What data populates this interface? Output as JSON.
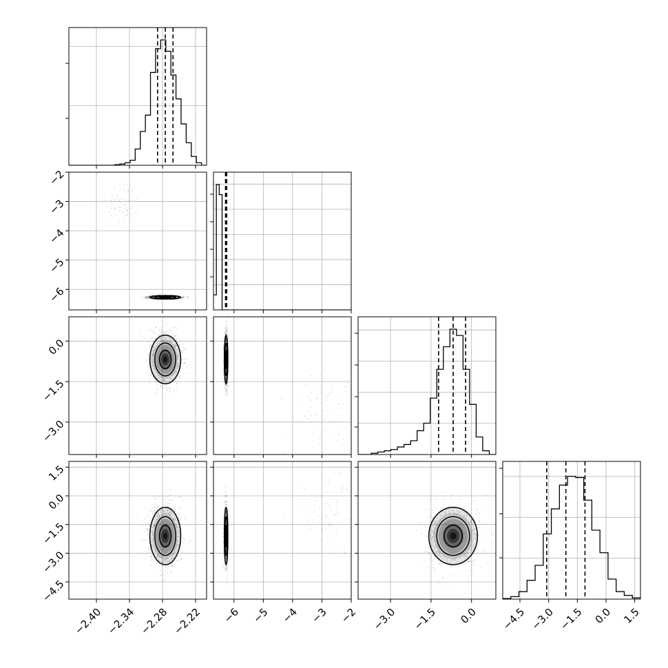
{
  "chart_data": {
    "type": "corner",
    "grid": true,
    "params": [
      {
        "range": [
          -2.45,
          -2.2
        ],
        "ticks": [
          -2.4,
          -2.34,
          -2.28,
          -2.22
        ],
        "tick_labels": [
          "−2.40",
          "−2.34",
          "−2.28",
          "−2.22"
        ],
        "quantiles": [
          -2.289,
          -2.275,
          -2.261
        ]
      },
      {
        "range": [
          -6.7,
          -2.0
        ],
        "ticks": [
          -6,
          -5,
          -4,
          -3,
          -2
        ],
        "tick_labels": [
          "−6",
          "−5",
          "−4",
          "−3",
          "−2"
        ],
        "quantiles": [
          -6.29,
          -6.27,
          -6.25
        ]
      },
      {
        "range": [
          -4.2,
          0.9
        ],
        "ticks": [
          -3.0,
          -1.5,
          0.0
        ],
        "tick_labels": [
          "−3.0",
          "−1.5",
          "0.0"
        ],
        "quantiles": [
          -1.22,
          -0.68,
          -0.22
        ]
      },
      {
        "range": [
          -5.4,
          1.8
        ],
        "ticks": [
          -4.5,
          -3.0,
          -1.5,
          0.0,
          1.5
        ],
        "tick_labels": [
          "−4.5",
          "−3.0",
          "−1.5",
          "0.0",
          "1.5"
        ],
        "quantiles": [
          -3.1,
          -2.1,
          -1.1
        ]
      }
    ],
    "y_axis_labels": [
      {
        "row": 1,
        "ticks": [
          -2,
          -3,
          -4,
          -5,
          -6
        ],
        "tick_labels": [
          "−2",
          "−3",
          "−4",
          "−5",
          "−6"
        ]
      },
      {
        "row": 2,
        "ticks": [
          0.0,
          -1.5,
          -3.0
        ],
        "tick_labels": [
          "0.0",
          "−1.5",
          "−3.0"
        ]
      },
      {
        "row": 3,
        "ticks": [
          1.5,
          0.0,
          -1.5,
          -3.0,
          -4.5
        ],
        "tick_labels": [
          "1.5",
          "0.0",
          "−1.5",
          "−3.0",
          "−4.5"
        ]
      }
    ],
    "histograms": [
      {
        "param": 0,
        "values": [
          0,
          0,
          0,
          0,
          0,
          0,
          0,
          0,
          0,
          0.005,
          0.01,
          0.02,
          0.04,
          0.13,
          0.27,
          0.4,
          0.74,
          0.93,
          1.0,
          0.91,
          0.72,
          0.53,
          0.33,
          0.18,
          0.07,
          0.02,
          0
        ]
      },
      {
        "param": 1,
        "values": [
          0.12,
          1.0,
          0.92,
          0,
          0,
          0,
          0,
          0,
          0,
          0,
          0,
          0,
          0,
          0,
          0,
          0,
          0,
          0,
          0,
          0,
          0,
          0,
          0,
          0,
          0,
          0,
          0,
          0,
          0,
          0,
          0,
          0,
          0,
          0,
          0,
          0,
          0,
          0,
          0,
          0,
          0,
          0,
          0,
          0,
          0,
          0,
          0,
          0
        ]
      },
      {
        "param": 2,
        "values": [
          0,
          0,
          0.01,
          0.02,
          0.03,
          0.04,
          0.06,
          0.08,
          0.11,
          0.19,
          0.25,
          0.45,
          0.68,
          0.86,
          1.0,
          0.95,
          0.68,
          0.4,
          0.14,
          0.03,
          0
        ]
      },
      {
        "param": 3,
        "values": [
          0.005,
          0.02,
          0.06,
          0.15,
          0.27,
          0.52,
          0.72,
          0.91,
          0.98,
          0.97,
          0.79,
          0.55,
          0.37,
          0.16,
          0.06,
          0.03,
          0.01
        ]
      }
    ],
    "posteriors": [
      {
        "param": 0,
        "mean": -2.275,
        "sd": 0.014
      },
      {
        "param": 1,
        "mean": -6.27,
        "sd": 0.03
      },
      {
        "param": 2,
        "mean": -0.68,
        "sd": 0.45
      },
      {
        "param": 3,
        "mean": -2.1,
        "sd": 0.75
      }
    ],
    "outlier_clusters": [
      {
        "params": [
          0,
          1
        ],
        "center": [
          -2.35,
          -3.0
        ],
        "spread": [
          0.015,
          0.35
        ]
      },
      {
        "params": [
          1,
          2
        ],
        "center": [
          -3.0,
          -2.4
        ],
        "spread": [
          0.55,
          0.7
        ]
      },
      {
        "params": [
          1,
          3
        ],
        "center": [
          -2.8,
          -0.8
        ],
        "spread": [
          0.5,
          1.0
        ]
      }
    ]
  }
}
